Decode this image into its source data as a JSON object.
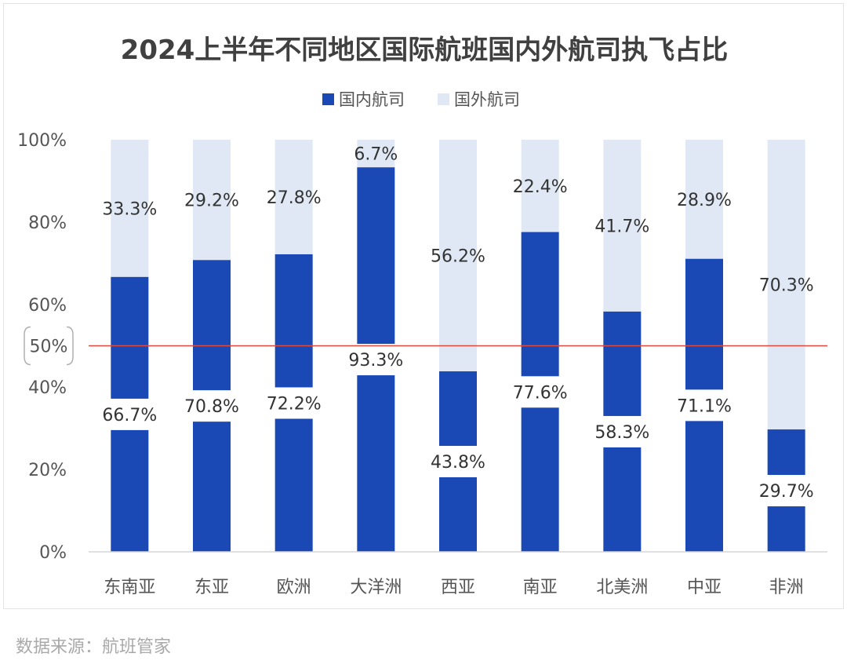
{
  "chart_data": {
    "type": "bar",
    "stacked": true,
    "percent": true,
    "title": "2024上半年不同地区国际航班国内外航司执飞占比",
    "categories": [
      "东南亚",
      "东亚",
      "欧洲",
      "大洋洲",
      "西亚",
      "南亚",
      "北美洲",
      "中亚",
      "非洲"
    ],
    "series": [
      {
        "name": "国内航司",
        "color": "#1a49b5",
        "values": [
          66.7,
          70.8,
          72.2,
          93.3,
          43.8,
          77.6,
          58.3,
          71.1,
          29.7
        ],
        "labels": [
          "66.7%",
          "70.8%",
          "72.2%",
          "93.3%",
          "43.8%",
          "77.6%",
          "58.3%",
          "71.1%",
          "29.7%"
        ]
      },
      {
        "name": "国外航司",
        "color": "#dfe8f4",
        "values": [
          33.3,
          29.2,
          27.8,
          6.7,
          56.2,
          22.4,
          41.7,
          28.9,
          70.3
        ],
        "labels": [
          "33.3%",
          "29.2%",
          "27.8%",
          "6.7%",
          "56.2%",
          "22.4%",
          "41.7%",
          "28.9%",
          "70.3%"
        ]
      }
    ],
    "ylim": [
      0,
      100
    ],
    "yticks": [
      "0%",
      "20%",
      "40%",
      "60%",
      "80%",
      "100%"
    ],
    "reference_line": {
      "value": 50,
      "label": "50%",
      "color": "#e04a3c"
    },
    "grid": false,
    "legend": "top-center"
  },
  "source": "数据来源：航班管家",
  "colors": {
    "title": "#404040",
    "axis_text": "#555555",
    "label_text": "#333333"
  }
}
